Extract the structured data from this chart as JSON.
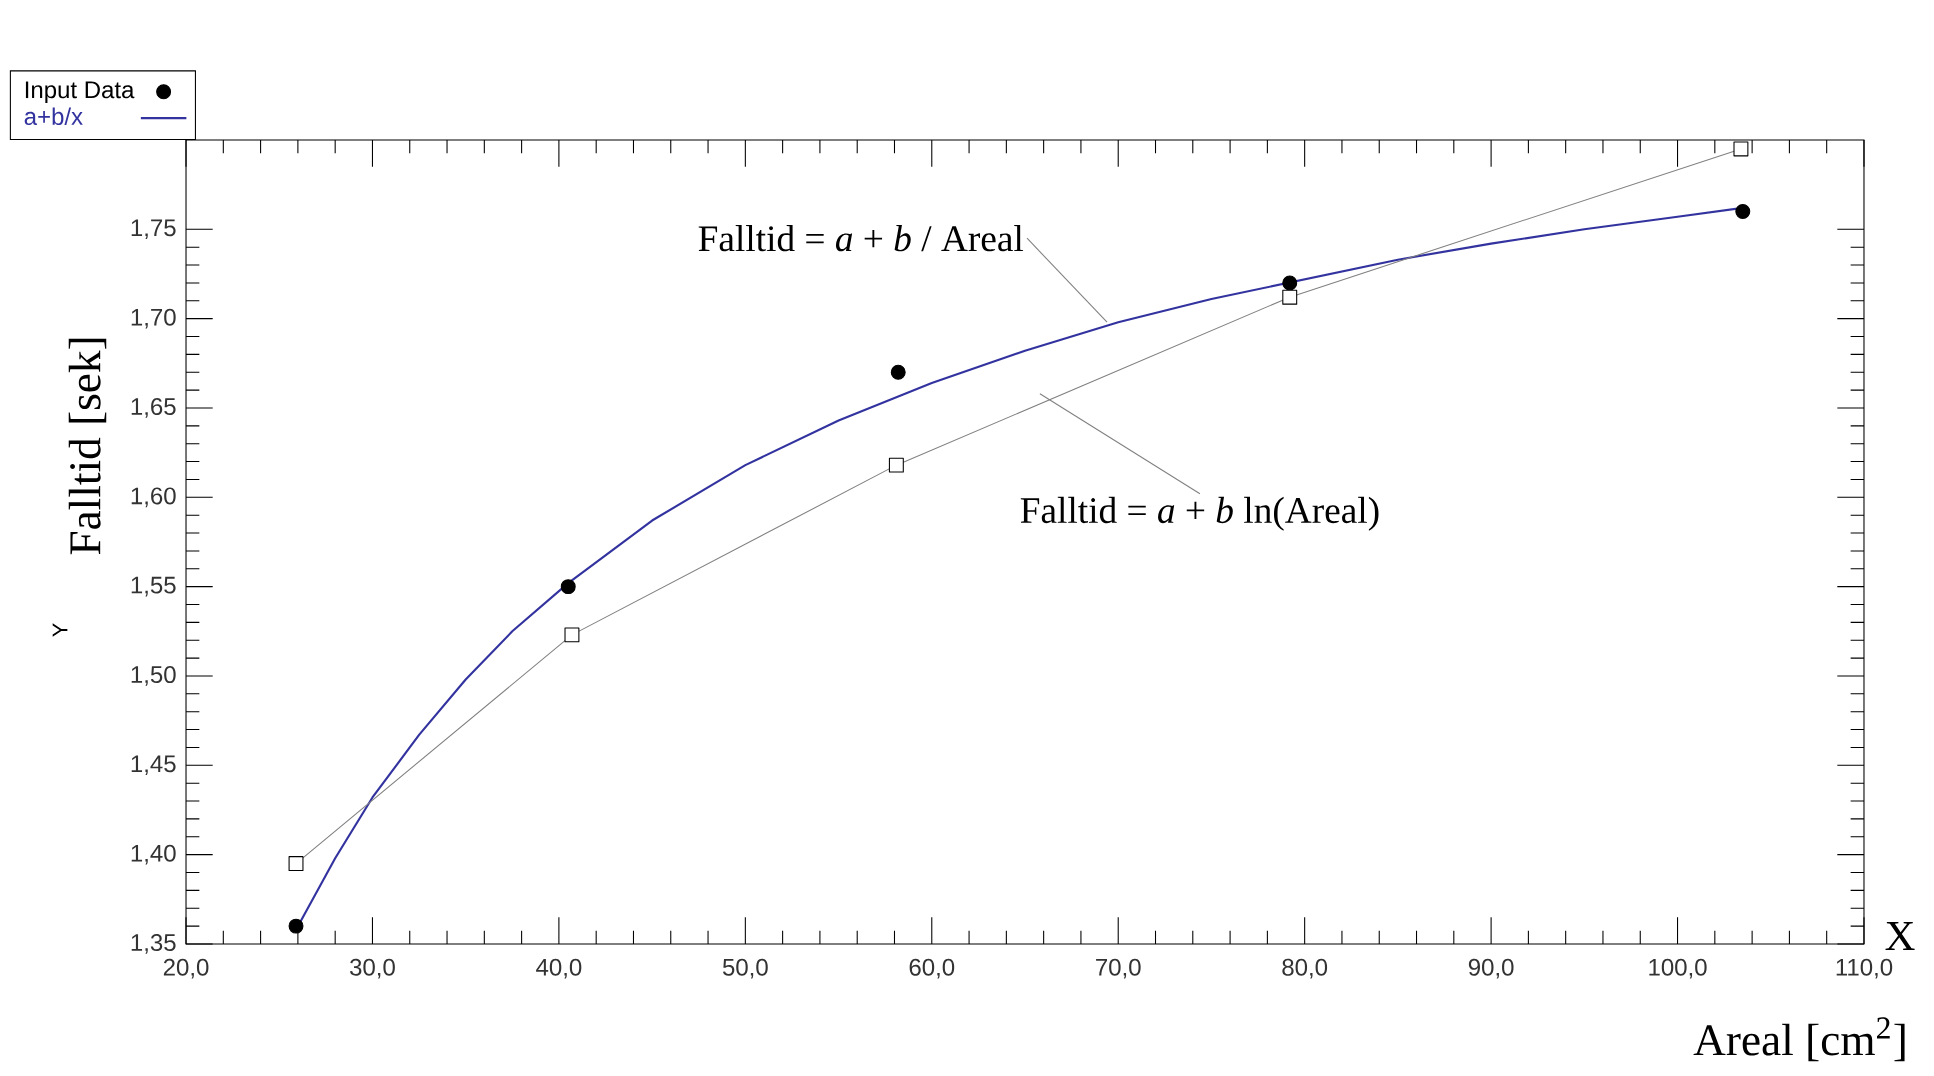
{
  "chart_data": {
    "type": "line",
    "xlabel": "Areal [cm$^{2}$]",
    "ylabel": "Falltid [sek]",
    "xlim": [
      20,
      110
    ],
    "ylim": [
      1.35,
      1.8
    ],
    "xticks": [
      {
        "value": 20,
        "label": "20,0"
      },
      {
        "value": 30,
        "label": "30,0"
      },
      {
        "value": 40,
        "label": "40,0"
      },
      {
        "value": 50,
        "label": "50,0"
      },
      {
        "value": 60,
        "label": "60,0"
      },
      {
        "value": 70,
        "label": "70,0"
      },
      {
        "value": 80,
        "label": "80,0"
      },
      {
        "value": 90,
        "label": "90,0"
      },
      {
        "value": 100,
        "label": "100,0"
      },
      {
        "value": 110,
        "label": "110,0"
      }
    ],
    "yticks": [
      {
        "value": 1.35,
        "label": "1,35"
      },
      {
        "value": 1.4,
        "label": "1,40"
      },
      {
        "value": 1.45,
        "label": "1,45"
      },
      {
        "value": 1.5,
        "label": "1,50"
      },
      {
        "value": 1.55,
        "label": "1,55"
      },
      {
        "value": 1.6,
        "label": "1,60"
      },
      {
        "value": 1.65,
        "label": "1,65"
      },
      {
        "value": 1.7,
        "label": "1,70"
      },
      {
        "value": 1.75,
        "label": "1,75"
      }
    ],
    "legend": "top left",
    "series": [
      {
        "name": "Input Data",
        "type": "scatter",
        "color": "#000000",
        "marker": "circle",
        "x": [
          25.9,
          40.5,
          58.2,
          79.2,
          103.5
        ],
        "values": [
          1.36,
          1.55,
          1.67,
          1.72,
          1.76
        ]
      },
      {
        "name": "a+b/x",
        "color": "#3333a0",
        "marker": "none",
        "x": [
          25.9,
          28,
          30,
          32.5,
          35,
          37.5,
          40.5,
          45,
          50,
          55,
          60,
          65,
          70,
          75,
          80,
          85,
          90,
          95,
          100,
          103.5
        ],
        "values": [
          1.358,
          1.398,
          1.432,
          1.467,
          1.498,
          1.525,
          1.552,
          1.587,
          1.618,
          1.643,
          1.664,
          1.682,
          1.698,
          1.711,
          1.722,
          1.733,
          1.742,
          1.75,
          1.757,
          1.762
        ]
      },
      {
        "color": "#808080",
        "marker": "square",
        "x": [
          25.9,
          40.7,
          58.1,
          79.2,
          103.4
        ],
        "values": [
          1.395,
          1.523,
          1.618,
          1.712,
          1.795
        ]
      }
    ],
    "annotations": [
      {
        "text": "Falltid  =  *a* + *b* / Areal",
        "x": 69.4,
        "y": 1.698
      },
      {
        "text": "Falltid  =  *a* + *b* ln(Areal)",
        "x": 65.8,
        "y": 1.658
      },
      "Y",
      "X"
    ]
  }
}
